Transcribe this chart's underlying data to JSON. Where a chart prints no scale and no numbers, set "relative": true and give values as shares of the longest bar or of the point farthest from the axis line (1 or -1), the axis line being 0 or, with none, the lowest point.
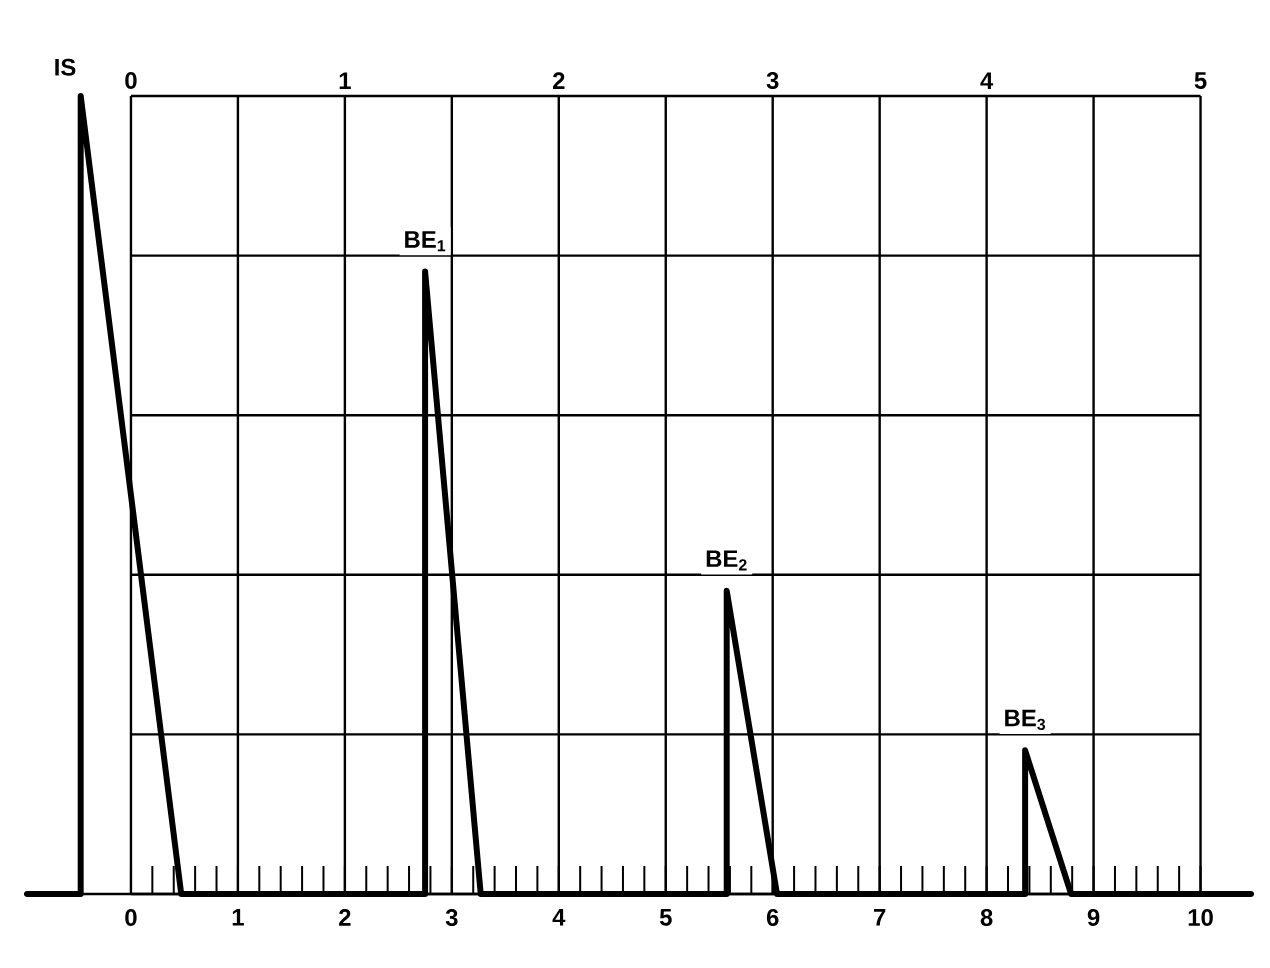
{
  "chart_data": {
    "type": "line",
    "relative": true,
    "x": [
      -0.97,
      -0.47,
      -0.47,
      0.47,
      2.75,
      2.75,
      3.27,
      5.57,
      5.57,
      6.04,
      8.36,
      8.36,
      8.79,
      10.47
    ],
    "series": [
      {
        "color": "#000000",
        "values": [
          0,
          0,
          1,
          0,
          0,
          0.78,
          0,
          0,
          0.38,
          0,
          0,
          0.18,
          0,
          0
        ]
      }
    ],
    "xlim": [
      -1,
      10.5
    ],
    "xticks": [
      0,
      1,
      2,
      3,
      4,
      5,
      6,
      7,
      8,
      9,
      10
    ],
    "x2lim": [
      -0.5,
      5.25
    ],
    "x2ticks": [
      0,
      1,
      2,
      3,
      4,
      5
    ],
    "grid": true,
    "annotations": [
      {
        "text": "IS",
        "x": -0.47,
        "y": 1
      },
      {
        "text": "BE$_{1}$",
        "x": 2.75,
        "y": 0.78
      },
      {
        "text": "BE$_{2}$",
        "x": 5.57,
        "y": 0.38
      },
      {
        "text": "BE$_{3}$",
        "x": 8.36,
        "y": 0.18
      }
    ]
  }
}
